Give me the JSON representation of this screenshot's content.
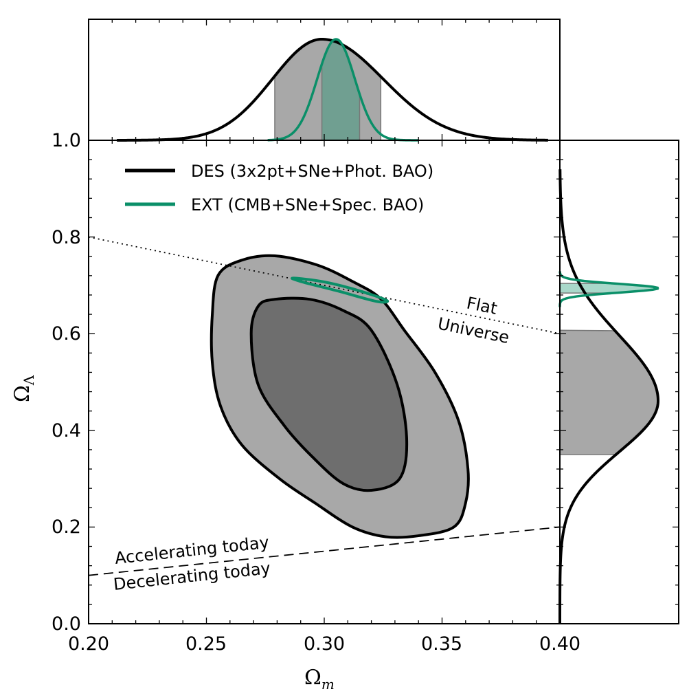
{
  "chart_data": {
    "type": "contour",
    "xlabel": "Ω_m",
    "ylabel": "Ω_Λ",
    "xlabel_main": "Ω",
    "xlabel_sub": "m",
    "ylabel_main": "Ω",
    "ylabel_sub": "Λ",
    "xlim": [
      0.2,
      0.4
    ],
    "ylim": [
      0.0,
      1.0
    ],
    "xticks": [
      "0.20",
      "0.25",
      "0.30",
      "0.35",
      "0.40"
    ],
    "yticks": [
      "0.0",
      "0.2",
      "0.4",
      "0.6",
      "0.8",
      "1.0"
    ],
    "legend_position": "top-left",
    "colors": {
      "des": "#000000",
      "ext": "#0a8f68",
      "outer_fill": "#a8a8a8",
      "inner_fill": "#6e6e6e",
      "ext_band": "#a8ddd0"
    },
    "series": [
      {
        "name": "DES (3x2pt+SNe+Phot. BAO)",
        "color": "#000000",
        "contour_95": [
          [
            0.255,
            0.721
          ],
          [
            0.265,
            0.752
          ],
          [
            0.279,
            0.761
          ],
          [
            0.297,
            0.742
          ],
          [
            0.312,
            0.708
          ],
          [
            0.324,
            0.672
          ],
          [
            0.334,
            0.607
          ],
          [
            0.347,
            0.52
          ],
          [
            0.357,
            0.42
          ],
          [
            0.361,
            0.32
          ],
          [
            0.36,
            0.25
          ],
          [
            0.355,
            0.2
          ],
          [
            0.34,
            0.182
          ],
          [
            0.326,
            0.18
          ],
          [
            0.312,
            0.2
          ],
          [
            0.296,
            0.25
          ],
          [
            0.281,
            0.3
          ],
          [
            0.265,
            0.37
          ],
          [
            0.256,
            0.45
          ],
          [
            0.2525,
            0.54
          ],
          [
            0.2525,
            0.64
          ]
        ],
        "contour_68": [
          [
            0.272,
            0.657
          ],
          [
            0.279,
            0.671
          ],
          [
            0.294,
            0.671
          ],
          [
            0.308,
            0.648
          ],
          [
            0.32,
            0.607
          ],
          [
            0.331,
            0.494
          ],
          [
            0.335,
            0.38
          ],
          [
            0.332,
            0.3
          ],
          [
            0.32,
            0.276
          ],
          [
            0.308,
            0.29
          ],
          [
            0.295,
            0.345
          ],
          [
            0.283,
            0.41
          ],
          [
            0.272,
            0.494
          ],
          [
            0.269,
            0.6
          ]
        ],
        "marginal_omega_m": {
          "mean": 0.299,
          "sigma_low": 0.021,
          "sigma_high": 0.026,
          "band": [
            0.279,
            0.324
          ]
        },
        "marginal_omega_lambda": {
          "mean": 0.461,
          "sigma_low": 0.105,
          "sigma_high": 0.135,
          "band": [
            0.35,
            0.607
          ]
        }
      },
      {
        "name": "EXT (CMB+SNe+Spec. BAO)",
        "color": "#0a8f68",
        "contour_95": [
          [
            0.287,
            0.715
          ],
          [
            0.3,
            0.707
          ],
          [
            0.314,
            0.69
          ],
          [
            0.3265,
            0.669
          ],
          [
            0.322,
            0.667
          ],
          [
            0.306,
            0.688
          ],
          [
            0.29,
            0.708
          ]
        ],
        "marginal_omega_m": {
          "mean": 0.305,
          "sigma_low": 0.008,
          "sigma_high": 0.008,
          "band": [
            0.299,
            0.315
          ]
        },
        "marginal_omega_lambda": {
          "mean": 0.694,
          "sigma_low": 0.009,
          "sigma_high": 0.009,
          "band": [
            0.684,
            0.704
          ]
        }
      }
    ],
    "reference_lines": [
      {
        "name": "flat",
        "style": "dotted",
        "points": [
          [
            0.2,
            0.8
          ],
          [
            0.4,
            0.6
          ]
        ]
      },
      {
        "name": "acceleration",
        "style": "dashed",
        "points": [
          [
            0.2,
            0.1
          ],
          [
            0.4,
            0.2
          ]
        ]
      }
    ],
    "annotations": {
      "flat_line1": "Flat",
      "flat_line2": "Universe",
      "accelerating": "Accelerating today",
      "decelerating": "Decelerating today"
    }
  }
}
